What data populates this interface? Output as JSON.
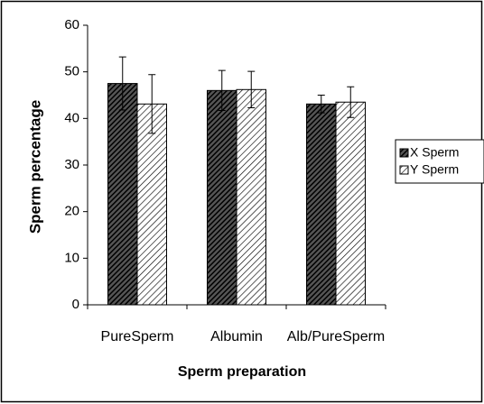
{
  "chart_data": {
    "type": "bar",
    "x_label": "Sperm preparation",
    "y_label": "Sperm percentage",
    "categories": [
      "PureSperm",
      "Albumin",
      "Alb/PureSperm"
    ],
    "series": [
      {
        "name": "X Sperm",
        "color": "#000000",
        "values": [
          47.5,
          46,
          43.1
        ],
        "errors": [
          5.7,
          4.3,
          1.9
        ]
      },
      {
        "name": "Y Sperm",
        "color": "#ffffff",
        "values": [
          43.1,
          46.2,
          43.5
        ],
        "errors": [
          6.3,
          3.9,
          3.3
        ]
      }
    ],
    "ylim": [
      0,
      60
    ],
    "yticks": [
      0,
      10,
      20,
      30,
      40,
      50,
      60
    ],
    "grid": false,
    "legend": "right"
  }
}
